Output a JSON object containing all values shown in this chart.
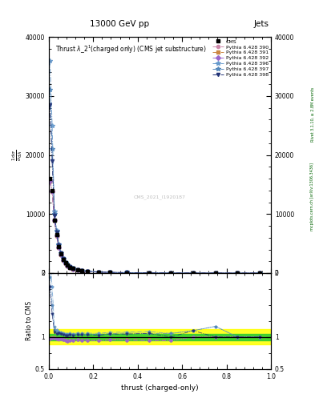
{
  "title_top": "13000 GeV pp",
  "title_top_right": "Jets",
  "plot_title": "Thrust \\lambda\\_2$^1$(charged only) (CMS jet substructure)",
  "xlabel": "thrust (charged-only)",
  "watermark": "CMS_2021_I1920187",
  "right_label": "Rivet 3.1.10, ≥ 2.8M events",
  "right_label2": "mcplots.cern.ch [arXiv:1306.3436]",
  "xlim": [
    0,
    1
  ],
  "ylim_main": [
    0,
    40000
  ],
  "ylim_ratio": [
    0.5,
    2.0
  ],
  "yticks_main": [
    0,
    10000,
    20000,
    30000,
    40000
  ],
  "ytick_labels_main": [
    "0",
    "10000",
    "20000",
    "30000",
    "40000"
  ],
  "yticks_ratio": [
    0.5,
    1.0,
    2.0
  ],
  "ytick_labels_ratio": [
    "0.5",
    "1",
    "2"
  ],
  "series": [
    {
      "label": "CMS",
      "color": "#000000",
      "marker": "s",
      "linestyle": "None",
      "markersize": 3
    },
    {
      "label": "Pythia 6.428 390",
      "color": "#cc88aa",
      "marker": "o",
      "linestyle": "-.",
      "markersize": 3
    },
    {
      "label": "Pythia 6.428 391",
      "color": "#cc8844",
      "marker": "s",
      "linestyle": "-.",
      "markersize": 3
    },
    {
      "label": "Pythia 6.428 392",
      "color": "#9966cc",
      "marker": "D",
      "linestyle": "-.",
      "markersize": 3
    },
    {
      "label": "Pythia 6.428 396",
      "color": "#6699cc",
      "marker": "*",
      "linestyle": "-.",
      "markersize": 4
    },
    {
      "label": "Pythia 6.428 397",
      "color": "#5588bb",
      "marker": "*",
      "linestyle": "-.",
      "markersize": 4
    },
    {
      "label": "Pythia 6.428 398",
      "color": "#223377",
      "marker": "v",
      "linestyle": "-.",
      "markersize": 3
    }
  ],
  "x_data": [
    0.005,
    0.015,
    0.025,
    0.035,
    0.045,
    0.055,
    0.065,
    0.075,
    0.085,
    0.095,
    0.11,
    0.13,
    0.15,
    0.175,
    0.225,
    0.275,
    0.35,
    0.45,
    0.55,
    0.65,
    0.75,
    0.85,
    0.95
  ],
  "cms_y": [
    16000,
    14000,
    9000,
    6500,
    4500,
    3200,
    2300,
    1700,
    1300,
    1000,
    750,
    560,
    420,
    300,
    175,
    110,
    65,
    35,
    18,
    10,
    6,
    4,
    3
  ],
  "py390_y": [
    15500,
    13800,
    8900,
    6300,
    4350,
    3100,
    2200,
    1620,
    1210,
    950,
    710,
    535,
    400,
    285,
    165,
    105,
    62,
    33,
    17,
    10,
    6,
    4,
    3
  ],
  "py391_y": [
    15600,
    13900,
    8950,
    6350,
    4370,
    3110,
    2210,
    1625,
    1215,
    955,
    712,
    537,
    401,
    286,
    166,
    106,
    63,
    34,
    17,
    10,
    6,
    4,
    3
  ],
  "py392_y": [
    15550,
    13850,
    8920,
    6320,
    4355,
    3105,
    2205,
    1622,
    1212,
    952,
    711,
    536,
    400,
    285,
    165,
    105,
    62,
    33,
    17,
    10,
    6,
    4,
    3
  ],
  "py396_y": [
    36000,
    25000,
    10500,
    7200,
    4900,
    3450,
    2450,
    1790,
    1360,
    1060,
    790,
    595,
    445,
    318,
    185,
    118,
    70,
    38,
    19,
    11,
    7,
    4,
    3
  ],
  "py397_y": [
    31000,
    21000,
    10000,
    7000,
    4800,
    3380,
    2400,
    1760,
    1340,
    1040,
    778,
    585,
    438,
    313,
    182,
    116,
    69,
    37,
    19,
    11,
    7,
    4,
    3
  ],
  "py398_y": [
    28500,
    19000,
    9700,
    6850,
    4750,
    3340,
    2375,
    1745,
    1330,
    1030,
    769,
    578,
    433,
    309,
    180,
    115,
    68,
    37,
    18,
    11,
    6,
    4,
    3
  ],
  "bg_color": "#ffffff",
  "ratio_green_band": 0.05,
  "ratio_yellow_band": 0.12
}
